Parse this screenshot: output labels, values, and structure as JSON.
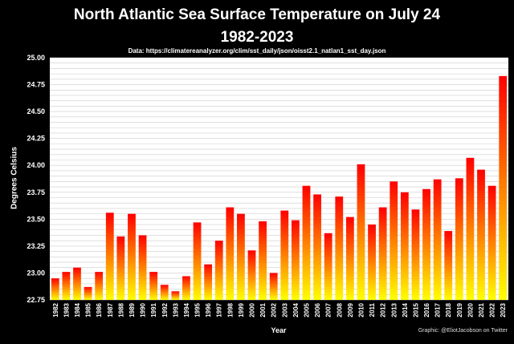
{
  "chart_data": {
    "type": "bar",
    "title_line1": "North Atlantic Sea Surface Temperature on July 24",
    "title_line2": "1982-2023",
    "subtitle": "Data: https://climatereanalyzer.org/clim/sst_daily/json/oisst2.1_natlan1_sst_day.json",
    "xlabel": "Year",
    "ylabel": "Degrees Celsius",
    "credit": "Graphic: @EliotJacobson on Twitter",
    "ylim": [
      22.75,
      25.0
    ],
    "yticks": [
      "22.75",
      "23.00",
      "23.25",
      "23.50",
      "23.75",
      "24.00",
      "24.25",
      "24.50",
      "24.75",
      "25.00"
    ],
    "categories": [
      "1982",
      "1983",
      "1984",
      "1985",
      "1986",
      "1987",
      "1988",
      "1989",
      "1990",
      "1991",
      "1992",
      "1993",
      "1994",
      "1995",
      "1996",
      "1997",
      "1998",
      "1999",
      "2000",
      "2001",
      "2002",
      "2003",
      "2004",
      "2005",
      "2006",
      "2007",
      "2008",
      "2009",
      "2010",
      "2011",
      "2012",
      "2013",
      "2014",
      "2015",
      "2016",
      "2017",
      "2018",
      "2019",
      "2020",
      "2021",
      "2022",
      "2023"
    ],
    "values": [
      22.95,
      23.01,
      23.05,
      22.87,
      23.01,
      23.56,
      23.34,
      23.55,
      23.35,
      23.01,
      22.89,
      22.83,
      22.97,
      23.47,
      23.08,
      23.3,
      23.61,
      23.55,
      23.21,
      23.48,
      23.0,
      23.58,
      23.49,
      23.81,
      23.73,
      23.37,
      23.71,
      23.52,
      24.01,
      23.45,
      23.61,
      23.85,
      23.75,
      23.59,
      23.78,
      23.87,
      23.39,
      23.88,
      24.07,
      23.96,
      23.81,
      24.83
    ],
    "colors": {
      "bar_top": "#ff0000",
      "bar_mid": "#ff8000",
      "bar_bottom": "#ffff00",
      "grid": "#cccccc",
      "plot_bg": "#ffffff",
      "background": "#000000"
    }
  }
}
